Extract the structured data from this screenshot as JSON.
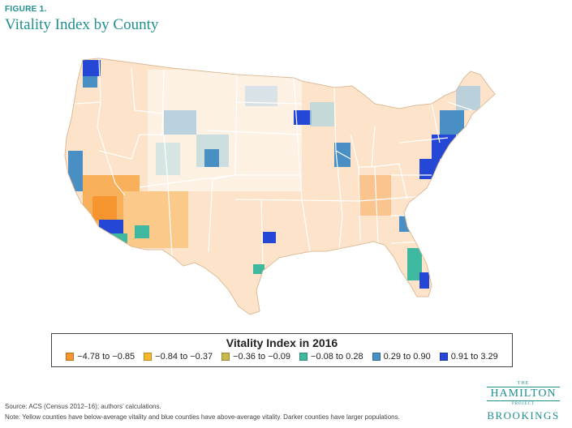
{
  "figure": {
    "label": "FIGURE 1.",
    "title": "Vitality Index by County"
  },
  "legend": {
    "title": "Vitality Index in 2016",
    "items": [
      {
        "label": "−4.78 to −0.85",
        "color": "#f7962f"
      },
      {
        "label": "−0.84 to −0.37",
        "color": "#f8b82c"
      },
      {
        "label": "−0.36 to −0.09",
        "color": "#c8b94a"
      },
      {
        "label": "−0.08 to 0.28",
        "color": "#3fb8a0"
      },
      {
        "label": "0.29 to 0.90",
        "color": "#4a8fc4"
      },
      {
        "label": "0.91 to 3.29",
        "color": "#2447d6"
      }
    ]
  },
  "map_colors": {
    "land_base": "#fce3c9",
    "land_light": "#fdeee0",
    "state_border": "#ffffff"
  },
  "footer": {
    "source": "Source: ACS (Census 2012–16); authors’ calculations.",
    "note": "Note: Yellow counties have below-average vitality and blue counties have above-average vitality. Darker counties have larger populations."
  },
  "logo": {
    "the": "THE",
    "hamilton": "HAMILTON",
    "project": "PROJECT",
    "brookings": "BROOKINGS"
  }
}
